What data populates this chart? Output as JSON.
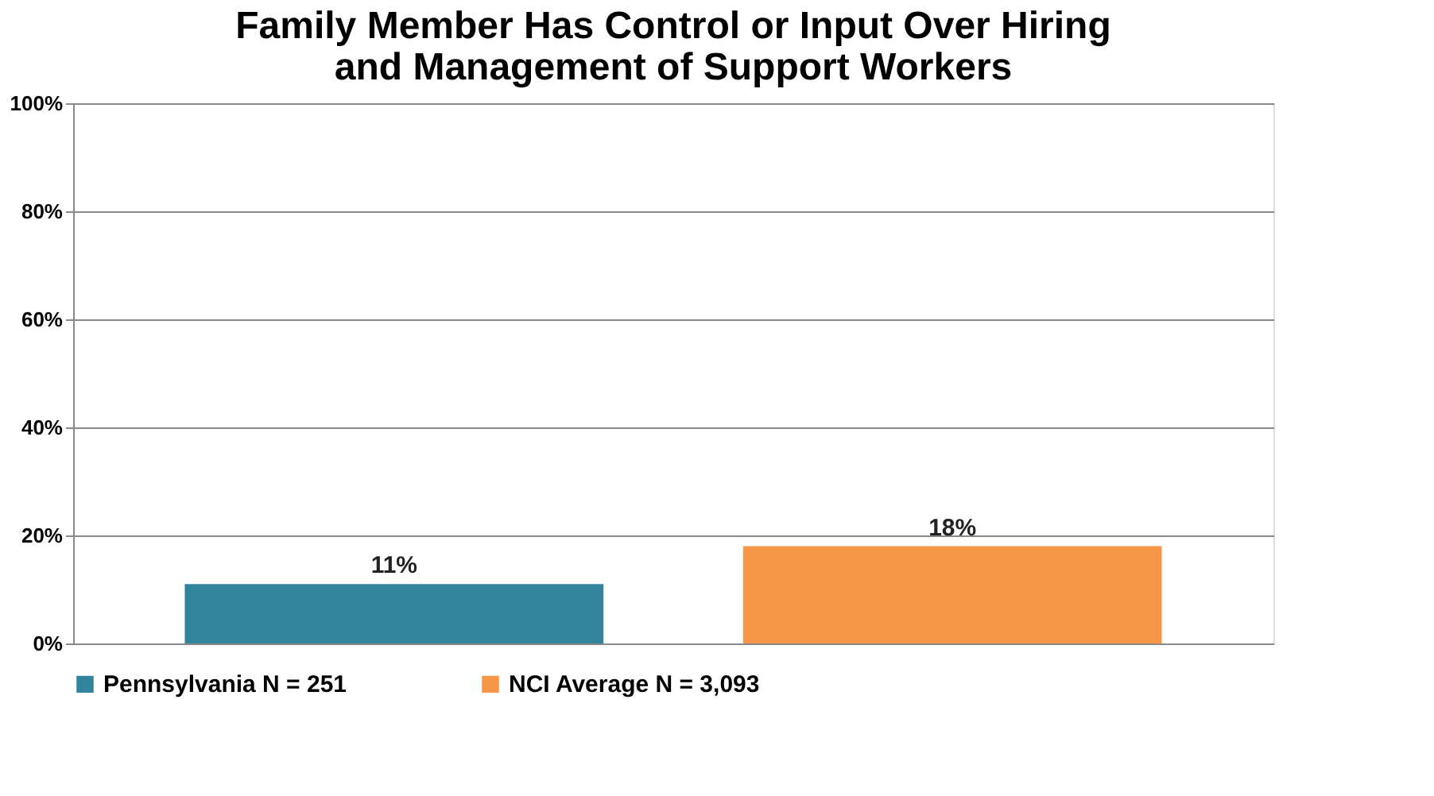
{
  "chart_data": {
    "type": "bar",
    "title": "Family Member Has Control or Input Over Hiring and Management of Support Workers",
    "categories": [
      null,
      null
    ],
    "series": [
      {
        "name": "Pennsylvania N = 251",
        "color": "#31849b",
        "values": [
          11,
          null
        ],
        "value_labels": [
          "11%",
          null
        ]
      },
      {
        "name": "NCI Average N = 3,093",
        "color": "#f79646",
        "values": [
          null,
          18
        ],
        "value_labels": [
          null,
          "18%"
        ]
      }
    ],
    "ylim": [
      0,
      100
    ],
    "yticks": [
      {
        "value": 0,
        "label": "0%"
      },
      {
        "value": 20,
        "label": "20%"
      },
      {
        "value": 40,
        "label": "40%"
      },
      {
        "value": 60,
        "label": "60%"
      },
      {
        "value": 80,
        "label": "80%"
      },
      {
        "value": 100,
        "label": "100%"
      }
    ],
    "grid": "y",
    "legend": "bottom"
  }
}
